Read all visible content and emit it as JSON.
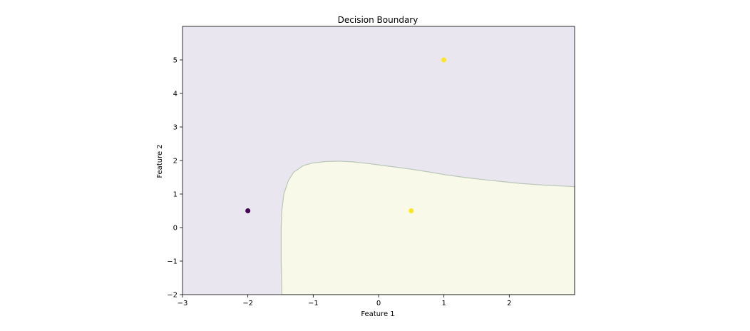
{
  "chart_data": {
    "type": "scatter",
    "title": "Decision Boundary",
    "xlabel": "Feature 1",
    "ylabel": "Feature 2",
    "xlim": [
      -3,
      3
    ],
    "ylim": [
      -2,
      6
    ],
    "xticks": [
      -3,
      -2,
      -1,
      0,
      1,
      2
    ],
    "yticks": [
      -2,
      -1,
      0,
      1,
      2,
      3,
      4,
      5
    ],
    "tick_labels_x": [
      "−3",
      "−2",
      "−1",
      "0",
      "1",
      "2"
    ],
    "tick_labels_y": [
      "−2",
      "−1",
      "0",
      "1",
      "2",
      "3",
      "4",
      "5"
    ],
    "points": [
      {
        "x": -2.0,
        "y": 0.5,
        "class": 0
      },
      {
        "x": 0.5,
        "y": 0.5,
        "class": 1
      },
      {
        "x": 1.0,
        "y": 5.0,
        "class": 1
      }
    ],
    "decision_region_class1": [
      [
        -1.48,
        -2.0
      ],
      [
        -1.49,
        -1.0
      ],
      [
        -1.49,
        0.0
      ],
      [
        -1.48,
        0.5
      ],
      [
        -1.45,
        1.0
      ],
      [
        -1.38,
        1.4
      ],
      [
        -1.3,
        1.65
      ],
      [
        -1.15,
        1.85
      ],
      [
        -1.0,
        1.93
      ],
      [
        -0.8,
        1.97
      ],
      [
        -0.6,
        1.98
      ],
      [
        -0.4,
        1.96
      ],
      [
        -0.2,
        1.92
      ],
      [
        0.0,
        1.87
      ],
      [
        0.2,
        1.82
      ],
      [
        0.5,
        1.74
      ],
      [
        0.8,
        1.65
      ],
      [
        1.0,
        1.58
      ],
      [
        1.3,
        1.5
      ],
      [
        1.6,
        1.43
      ],
      [
        1.9,
        1.37
      ],
      [
        2.2,
        1.31
      ],
      [
        2.5,
        1.27
      ],
      [
        2.8,
        1.24
      ],
      [
        3.0,
        1.22
      ],
      [
        3.0,
        -2.0
      ]
    ],
    "colors": {
      "class0_point": "#440154",
      "class1_point": "#fde725",
      "class0_region": "#e9e6ef",
      "class1_region": "#f8f9e9",
      "boundary": "#b8c7b8"
    }
  }
}
